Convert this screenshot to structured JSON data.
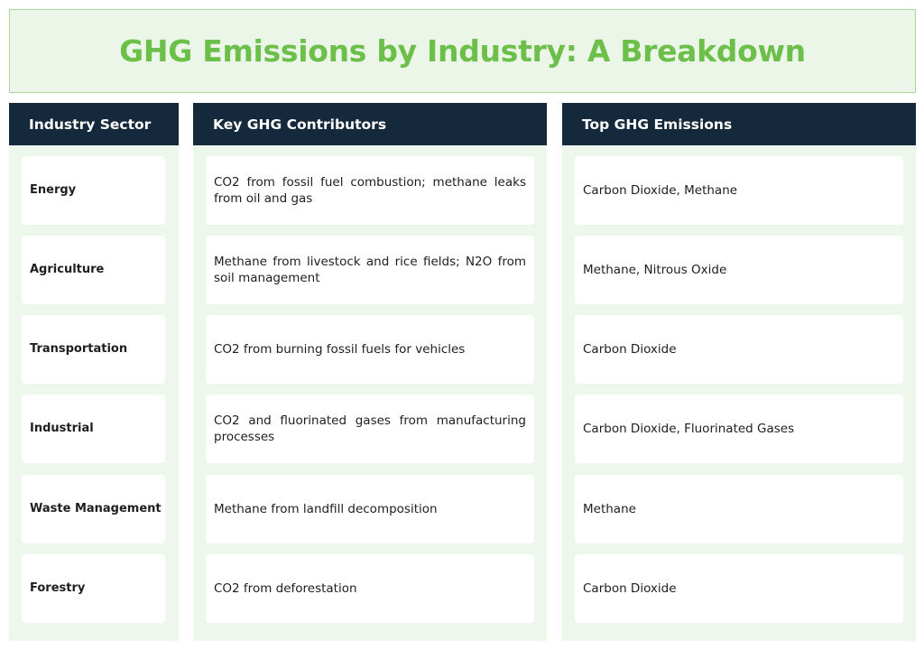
{
  "title": "GHG Emissions by Industry: A Breakdown",
  "columns": {
    "sector": "Industry Sector",
    "contributors": "Key GHG Contributors",
    "emissions": "Top GHG Emissions"
  },
  "rows": [
    {
      "sector": "Energy",
      "contributors": "CO2 from fossil fuel combustion; methane leaks from oil and gas",
      "emissions": "Carbon Dioxide, Methane"
    },
    {
      "sector": "Agriculture",
      "contributors": "Methane from livestock and rice fields; N2O from soil management",
      "emissions": "Methane, Nitrous Oxide"
    },
    {
      "sector": "Transportation",
      "contributors": "CO2 from burning fossil fuels for vehicles",
      "emissions": "Carbon Dioxide"
    },
    {
      "sector": "Industrial",
      "contributors": "CO2 and fluorinated gases from manufacturing processes",
      "emissions": "Carbon Dioxide, Fluorinated Gases"
    },
    {
      "sector": "Waste Management",
      "contributors": "Methane from landfill decomposition",
      "emissions": "Methane"
    },
    {
      "sector": "Forestry",
      "contributors": "CO2 from deforestation",
      "emissions": "Carbon Dioxide"
    }
  ],
  "colors": {
    "title_text": "#6cc04a",
    "title_bg": "#ebf6e8",
    "header_bg": "#14293b",
    "column_bg": "#eef7eb"
  }
}
